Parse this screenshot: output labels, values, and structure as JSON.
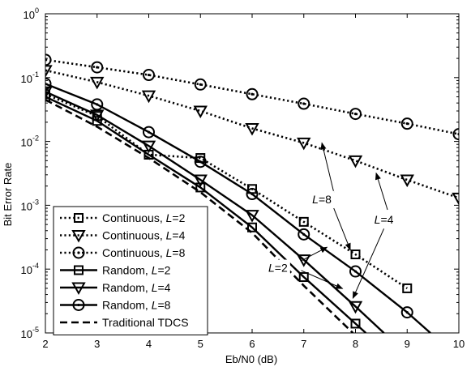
{
  "chart_data": {
    "type": "line",
    "xlabel": "Eb/N0 (dB)",
    "ylabel": "Bit Error Rate",
    "xlim": [
      2,
      10
    ],
    "ylim": [
      1e-05,
      1
    ],
    "yscale": "log",
    "grid": false,
    "legend_position": "bottom-left",
    "x_ticks": [
      "2",
      "3",
      "4",
      "5",
      "6",
      "7",
      "8",
      "9",
      "10"
    ],
    "y_ticks": [
      {
        "base": "10",
        "exp": "-5",
        "value": 1e-05
      },
      {
        "base": "10",
        "exp": "-4",
        "value": 0.0001
      },
      {
        "base": "10",
        "exp": "-3",
        "value": 0.001
      },
      {
        "base": "10",
        "exp": "-2",
        "value": 0.01
      },
      {
        "base": "10",
        "exp": "-1",
        "value": 0.1
      },
      {
        "base": "10",
        "exp": "0",
        "value": 1
      }
    ],
    "series": [
      {
        "name": "Continuous, L=2",
        "name_prefix": "Continuous, ",
        "name_var": "L",
        "name_suffix": "=2",
        "style": "dotted",
        "marker": "square",
        "x": [
          2,
          3,
          4,
          5,
          6,
          7,
          8,
          9
        ],
        "y": [
          0.055,
          0.025,
          0.0062,
          0.0055,
          0.0018,
          0.00055,
          0.00017,
          5e-05
        ]
      },
      {
        "name": "Continuous, L=4",
        "name_prefix": "Continuous, ",
        "name_var": "L",
        "name_suffix": "=4",
        "style": "dotted",
        "marker": "triangle-down",
        "x": [
          2,
          3,
          4,
          5,
          6,
          7,
          8,
          9,
          10
        ],
        "y": [
          0.13,
          0.085,
          0.052,
          0.03,
          0.016,
          0.0095,
          0.005,
          0.0025,
          0.0013
        ]
      },
      {
        "name": "Continuous, L=8",
        "name_prefix": "Continuous, ",
        "name_var": "L",
        "name_suffix": "=8",
        "style": "dotted",
        "marker": "circle",
        "x": [
          2,
          3,
          4,
          5,
          6,
          7,
          8,
          9,
          10
        ],
        "y": [
          0.19,
          0.145,
          0.11,
          0.078,
          0.055,
          0.039,
          0.027,
          0.019,
          0.013
        ]
      },
      {
        "name": "Random, L=2",
        "name_prefix": "Random, ",
        "name_var": "L",
        "name_suffix": "=2",
        "style": "solid",
        "marker": "square",
        "x": [
          2,
          3,
          4,
          5,
          6,
          7,
          8
        ],
        "y": [
          0.05,
          0.021,
          0.0062,
          0.0019,
          0.00045,
          7.5e-05,
          1.4e-05
        ],
        "line_end": [
          8.2,
          1e-05
        ]
      },
      {
        "name": "Random, L=4",
        "name_prefix": "Random, ",
        "name_var": "L",
        "name_suffix": "=4",
        "style": "solid",
        "marker": "triangle-down",
        "x": [
          2,
          3,
          4,
          5,
          6,
          7,
          8
        ],
        "y": [
          0.06,
          0.026,
          0.0085,
          0.0025,
          0.0007,
          0.00014,
          2.6e-05
        ],
        "line_end": [
          8.55,
          1e-05
        ]
      },
      {
        "name": "Random, L=8",
        "name_prefix": "Random, ",
        "name_var": "L",
        "name_suffix": "=8",
        "style": "solid",
        "marker": "circle",
        "x": [
          2,
          3,
          4,
          5,
          6,
          7,
          8,
          9
        ],
        "y": [
          0.08,
          0.038,
          0.014,
          0.0048,
          0.0015,
          0.00035,
          9.2e-05,
          2.1e-05
        ],
        "line_end": [
          9.45,
          1e-05
        ]
      },
      {
        "name": "Traditional TDCS",
        "name_prefix": "Traditional TDCS",
        "name_var": "",
        "name_suffix": "",
        "style": "dashed",
        "marker": "none",
        "x": [
          2,
          3,
          4,
          5,
          6,
          7,
          7.95
        ],
        "y": [
          0.045,
          0.017,
          0.0055,
          0.0016,
          0.00037,
          5.5e-05,
          1e-05
        ]
      }
    ],
    "annotations": [
      {
        "label_var": "L",
        "label_suffix": "=8",
        "x": 7.35,
        "y": 0.00125,
        "arrows": [
          {
            "from": [
              7.58,
              0.0016
            ],
            "to": [
              7.35,
              0.0095
            ]
          },
          {
            "from": [
              7.58,
              0.0009
            ],
            "to": [
              7.9,
              0.0002
            ]
          }
        ]
      },
      {
        "label_var": "L",
        "label_suffix": "=4",
        "x": 8.55,
        "y": 0.0006,
        "arrows": [
          {
            "from": [
              8.62,
              0.00085
            ],
            "to": [
              8.4,
              0.0032
            ]
          },
          {
            "from": [
              8.55,
              0.00043
            ],
            "to": [
              7.95,
              3.5e-05
            ]
          }
        ]
      },
      {
        "label_var": "L",
        "label_suffix": "=2",
        "x": 6.5,
        "y": 0.000105,
        "arrows": [
          {
            "from": [
              6.95,
              0.000135
            ],
            "to": [
              7.45,
              0.00022
            ]
          },
          {
            "from": [
              6.95,
              9.5e-05
            ],
            "to": [
              7.75,
              4.95e-05
            ]
          }
        ]
      }
    ]
  }
}
